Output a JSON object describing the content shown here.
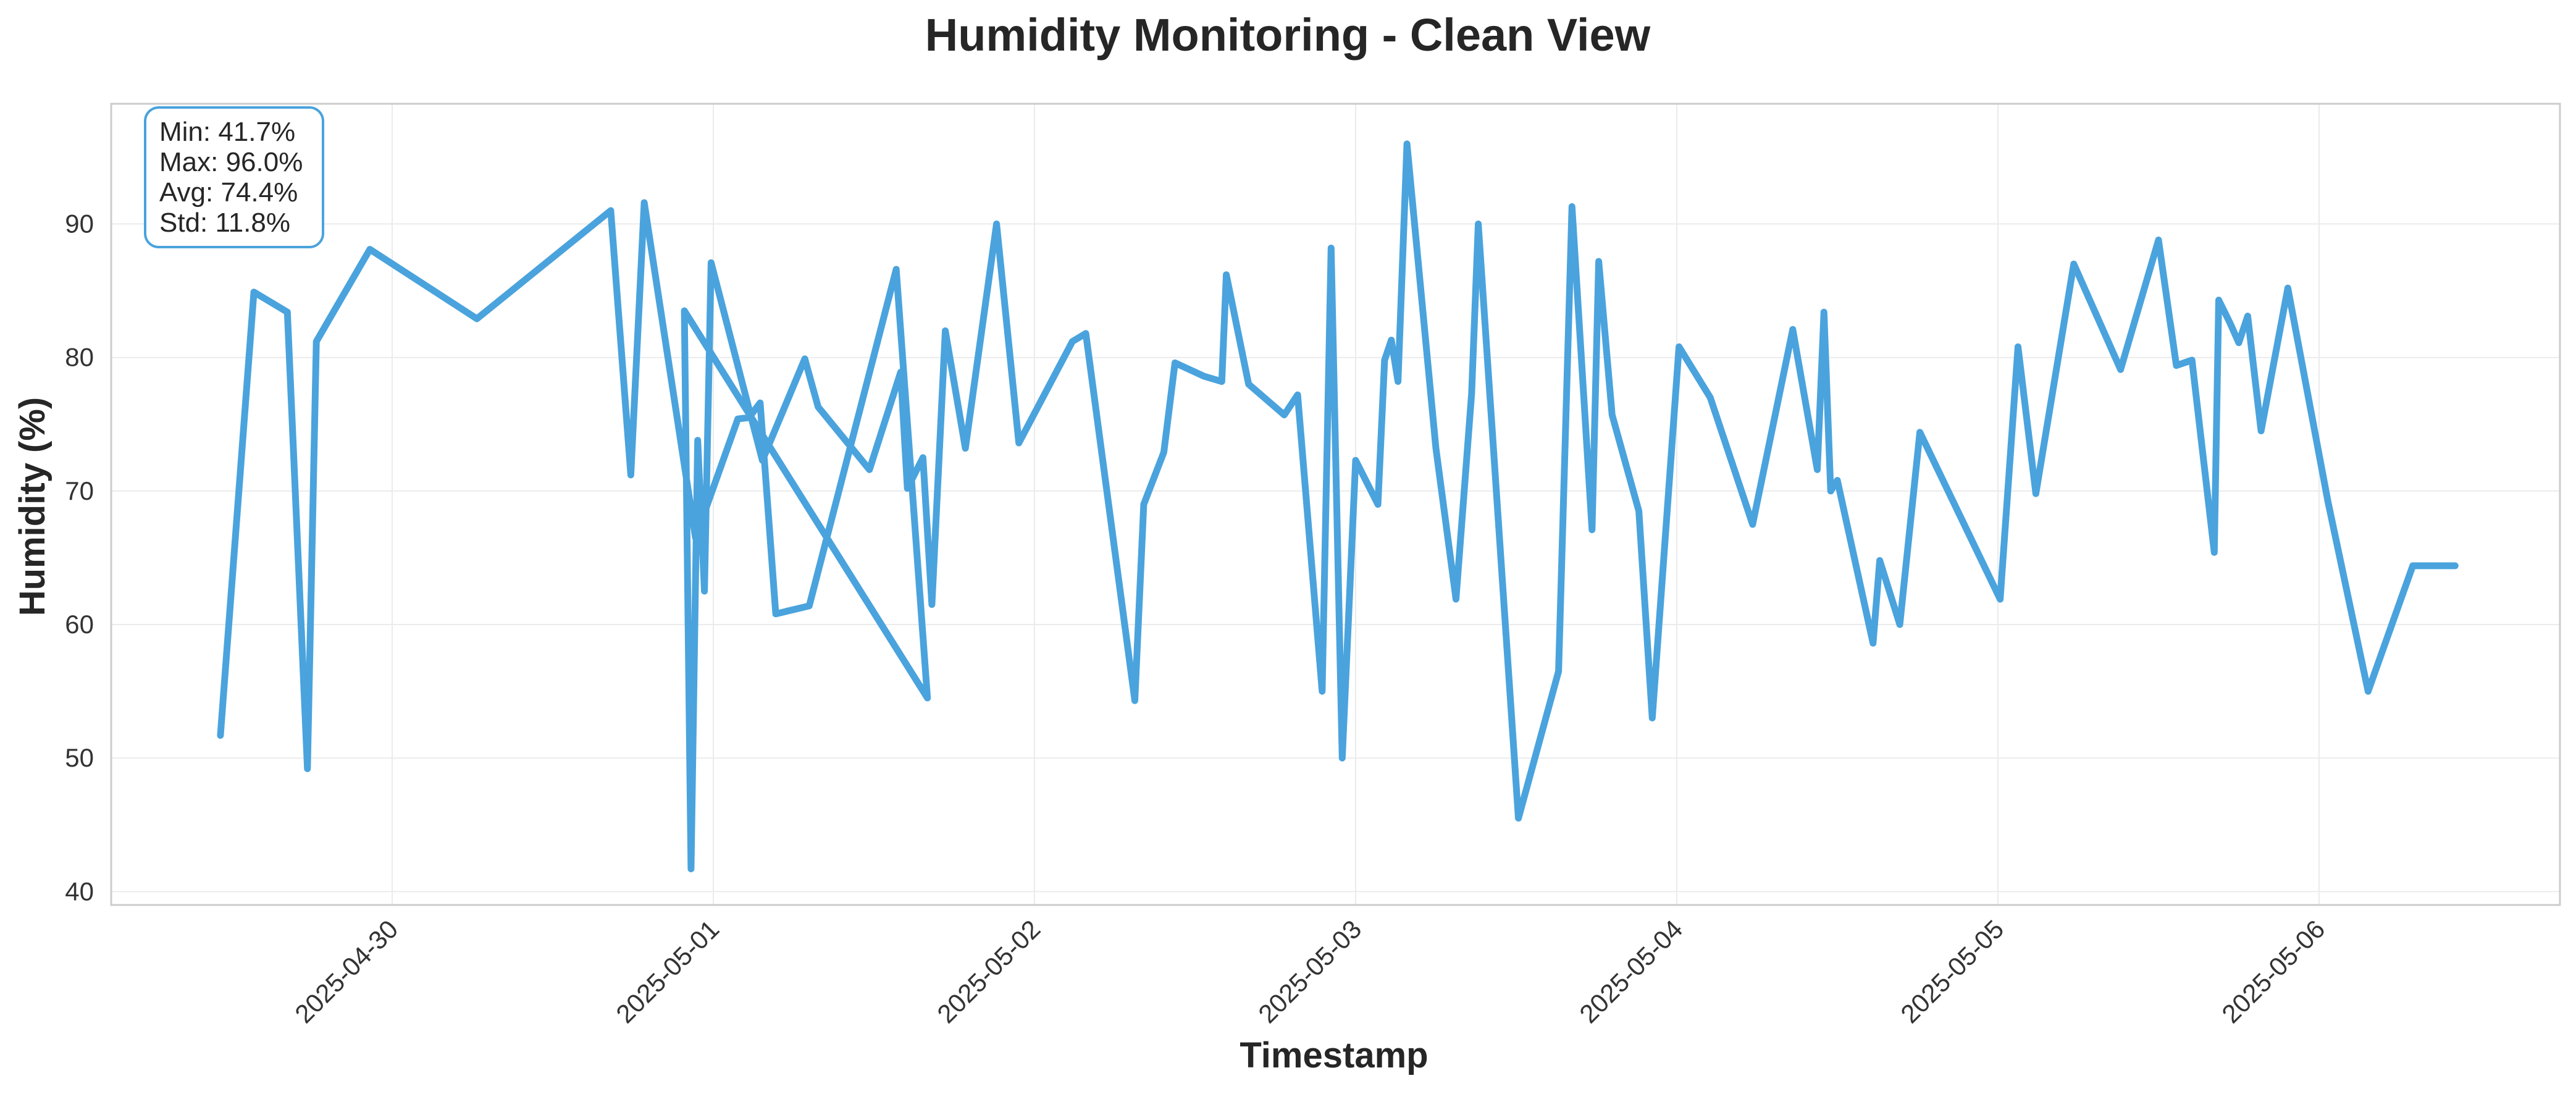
{
  "chart_data": {
    "type": "line",
    "title": "Humidity Monitoring - Clean View",
    "xlabel": "Timestamp",
    "ylabel": "Humidity (%)",
    "x_type": "date",
    "xlim": [
      "2025-04-29 03:00",
      "2025-05-06 18:00"
    ],
    "ylim": [
      39,
      99
    ],
    "yticks": [
      40,
      50,
      60,
      70,
      80,
      90
    ],
    "xticks": [
      "2025-04-30",
      "2025-05-01",
      "2025-05-02",
      "2025-05-03",
      "2025-05-04",
      "2025-05-05",
      "2025-05-06"
    ],
    "grid": true,
    "line_color": "#4aa3dd",
    "stats_box": {
      "border_color": "#4aa3dd",
      "lines": [
        "Min: 41.7%",
        "Max: 96.0%",
        "Avg: 74.4%",
        "Std: 11.8%"
      ]
    },
    "series": [
      {
        "x": [
          "2025-04-29 11:10",
          "2025-04-29 13:40",
          "2025-04-29 16:10",
          "2025-04-29 17:40",
          "2025-04-29 18:20",
          "2025-04-29 22:20",
          "2025-04-30 06:20",
          "2025-04-30 16:20",
          "2025-04-30 17:50",
          "2025-04-30 18:50",
          "2025-04-30 22:40",
          "2025-05-01 01:50",
          "2025-05-01 02:40",
          "2025-05-01 03:30",
          "2025-05-01 04:40",
          "2025-05-01 07:10",
          "2025-05-01 13:40",
          "2025-05-01 16:00",
          "2025-04-30 21:50",
          "2025-04-30 22:20",
          "2025-04-30 22:50",
          "2025-04-30 23:20",
          "2025-04-30 23:50",
          "2025-05-01 03:40",
          "2025-05-01 06:50",
          "2025-05-01 07:50",
          "2025-05-01 11:40",
          "2025-05-01 14:00",
          "2025-05-01 14:30",
          "2025-05-01 15:40",
          "2025-05-01 16:20",
          "2025-05-01 17:20",
          "2025-05-01 18:50",
          "2025-05-01 21:10",
          "2025-05-01 22:50",
          "2025-05-02 02:50",
          "2025-05-02 03:50",
          "2025-05-02 07:30",
          "2025-05-02 08:10",
          "2025-05-02 09:40",
          "2025-05-02 10:30",
          "2025-05-02 12:40",
          "2025-05-02 14:00",
          "2025-05-02 14:20",
          "2025-05-02 16:00",
          "2025-05-02 18:40",
          "2025-05-02 19:40",
          "2025-05-02 21:30",
          "2025-05-02 22:10",
          "2025-05-02 23:00",
          "2025-05-03 00:00",
          "2025-05-03 01:40",
          "2025-05-03 02:10",
          "2025-05-03 02:40",
          "2025-05-03 03:10",
          "2025-05-03 03:50",
          "2025-05-03 06:00",
          "2025-05-03 07:30",
          "2025-05-03 08:40",
          "2025-05-03 09:10",
          "2025-05-03 12:10",
          "2025-05-03 15:10",
          "2025-05-03 16:10",
          "2025-05-03 17:40",
          "2025-05-03 18:10",
          "2025-05-03 19:10",
          "2025-05-03 21:10",
          "2025-05-03 22:10",
          "2025-05-04 00:10",
          "2025-05-04 02:30",
          "2025-05-04 05:40",
          "2025-05-04 08:40",
          "2025-05-04 10:30",
          "2025-05-04 11:00",
          "2025-05-04 11:30",
          "2025-05-04 12:00",
          "2025-05-04 14:40",
          "2025-05-04 15:10",
          "2025-05-04 16:40",
          "2025-05-04 18:10",
          "2025-05-05 00:10",
          "2025-05-05 01:30",
          "2025-05-05 02:50",
          "2025-05-05 05:40",
          "2025-05-05 09:10",
          "2025-05-05 12:00",
          "2025-05-05 13:20",
          "2025-05-05 14:30",
          "2025-05-05 16:10",
          "2025-05-05 16:30",
          "2025-05-05 17:20",
          "2025-05-05 18:00",
          "2025-05-05 18:40",
          "2025-05-05 19:40",
          "2025-05-05 21:40",
          "2025-05-06 00:40",
          "2025-05-06 03:40",
          "2025-05-06 07:00",
          "2025-05-06 09:10",
          "2025-05-06 10:10"
        ],
        "values": [
          51.7,
          84.9,
          83.4,
          49.2,
          81.2,
          88.1,
          82.9,
          91.0,
          71.2,
          91.6,
          66.5,
          75.4,
          75.5,
          76.6,
          60.8,
          61.4,
          86.6,
          54.5,
          83.5,
          41.7,
          73.8,
          62.5,
          87.1,
          72.3,
          79.9,
          76.3,
          71.6,
          78.9,
          70.2,
          72.5,
          61.5,
          82.0,
          73.2,
          90.0,
          73.6,
          81.2,
          81.8,
          54.3,
          69.0,
          72.9,
          79.6,
          78.6,
          78.2,
          86.2,
          78.0,
          75.7,
          77.2,
          55.0,
          88.2,
          50.0,
          72.3,
          69.0,
          79.8,
          81.3,
          78.2,
          96.0,
          73.2,
          61.9,
          77.3,
          90.0,
          45.5,
          56.5,
          91.3,
          67.1,
          87.2,
          75.7,
          68.5,
          53.0,
          80.8,
          77.0,
          67.5,
          82.1,
          71.6,
          83.4,
          70.0,
          70.8,
          58.6,
          64.8,
          60.0,
          74.4,
          61.9,
          80.8,
          69.8,
          87.0,
          79.1,
          88.8,
          79.4,
          79.8,
          65.4,
          84.3,
          82.6,
          81.1,
          83.1,
          74.5,
          85.2,
          69.2,
          55.0,
          64.4,
          64.4,
          64.4
        ]
      }
    ]
  }
}
